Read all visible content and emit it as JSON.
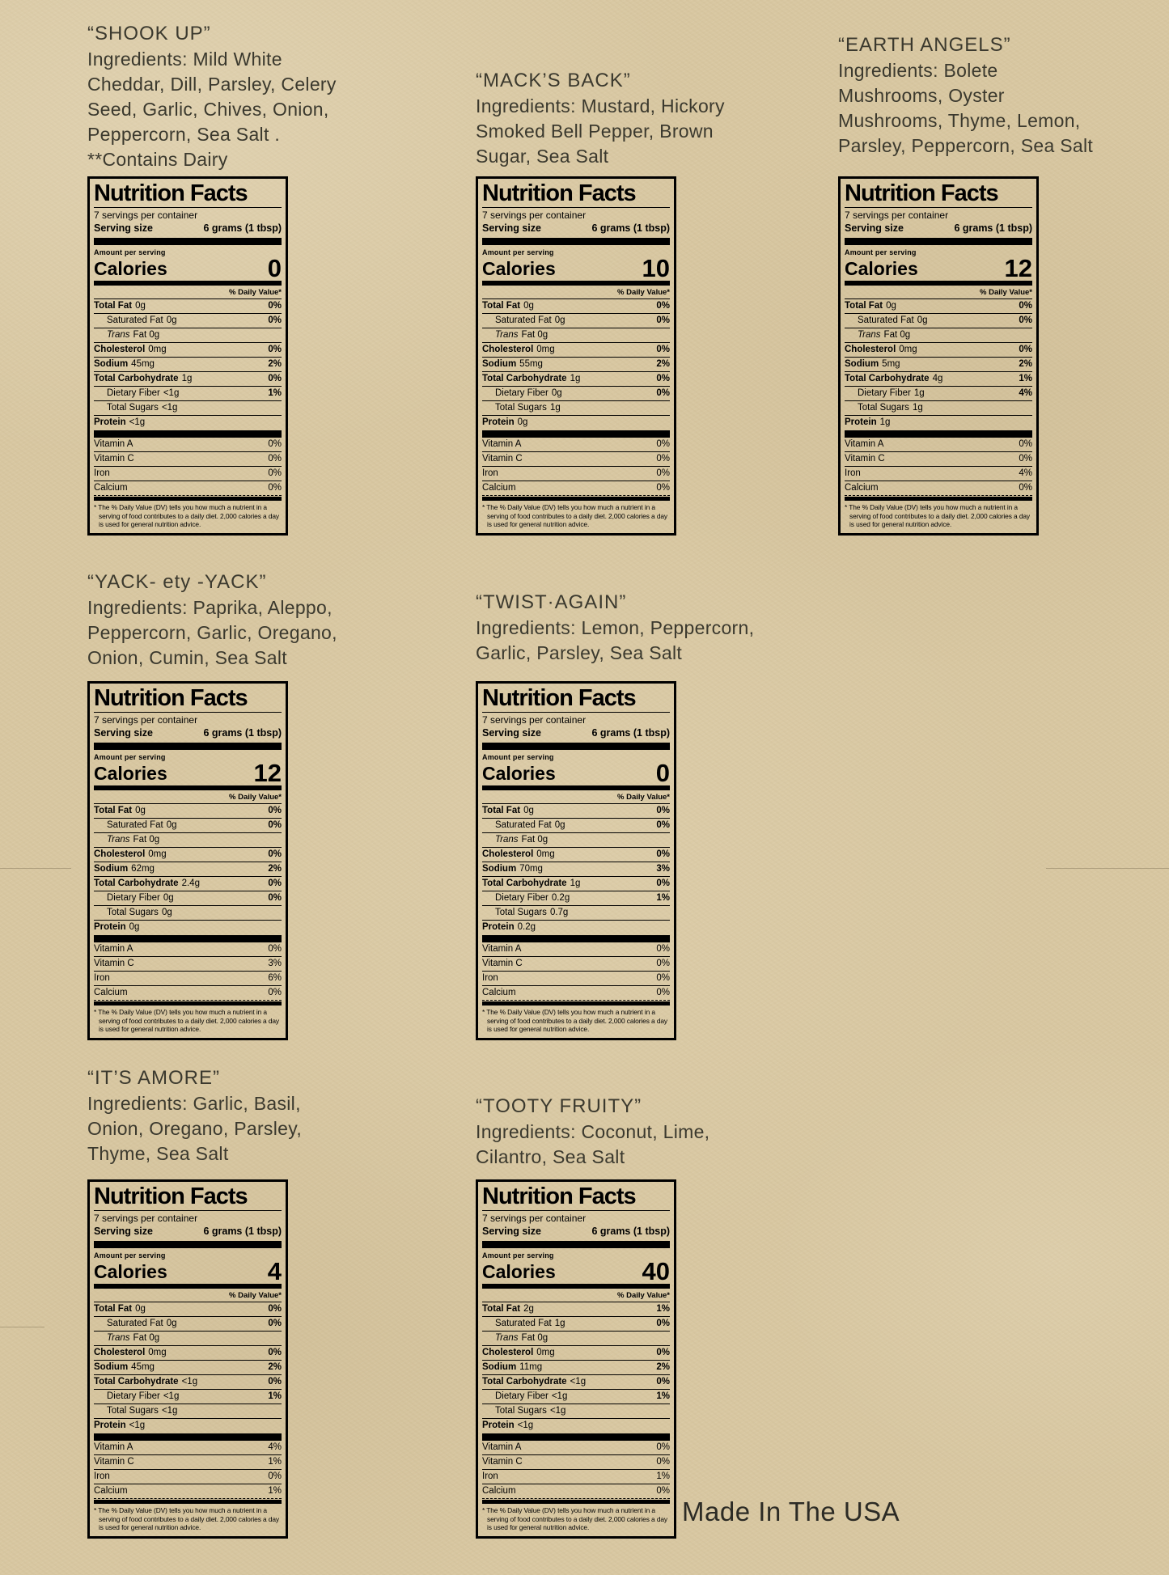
{
  "page": {
    "background_color": "#d8c7a1",
    "made_in_label": "Made In The USA"
  },
  "label_template": {
    "title": "Nutrition Facts",
    "servings_per_container": "7 servings per container",
    "serving_size_label": "Serving size",
    "serving_size_value": "6 grams (1 tbsp)",
    "amount_per_serving": "Amount per serving",
    "calories_label": "Calories",
    "daily_value_header": "% Daily Value*",
    "footnote": "* The % Daily Value (DV) tells you how much a nutrient in a serving of food contributes to a daily diet. 2,000 calories a day is used for general nutrition advice."
  },
  "products": [
    {
      "name": "“SHOOK UP”",
      "ingredient_lines": [
        "Ingredients: Mild White",
        "Cheddar, Dill, Parsley, Celery",
        "Seed, Garlic, Chives, Onion,",
        "Peppercorn, Sea Salt .",
        "**Contains Dairy"
      ],
      "calories": "0",
      "nutrient_rows": [
        {
          "name": "Total Fat",
          "amount": "0g",
          "pct": "0%",
          "style": "main"
        },
        {
          "name": "Saturated Fat",
          "amount": "0g",
          "pct": "0%",
          "style": "sub"
        },
        {
          "name": "Trans",
          "amount": "Fat 0g",
          "pct": "",
          "style": "subitalic"
        },
        {
          "name": "Cholesterol",
          "amount": "0mg",
          "pct": "0%",
          "style": "main"
        },
        {
          "name": "Sodium",
          "amount": "45mg",
          "pct": "2%",
          "style": "main"
        },
        {
          "name": "Total Carbohydrate",
          "amount": "1g",
          "pct": "0%",
          "style": "main"
        },
        {
          "name": "Dietary Fiber",
          "amount": "<1g",
          "pct": "1%",
          "style": "sub"
        },
        {
          "name": "Total Sugars",
          "amount": "<1g",
          "pct": "",
          "style": "sub"
        },
        {
          "name": "Protein",
          "amount": "<1g",
          "pct": "",
          "style": "main"
        }
      ],
      "vitamin_rows": [
        {
          "name": "Vitamin A",
          "pct": "0%"
        },
        {
          "name": "Vitamin C",
          "pct": "0%"
        },
        {
          "name": "Iron",
          "pct": "0%"
        },
        {
          "name": "Calcium",
          "pct": "0%"
        }
      ]
    },
    {
      "name": "“MACK’S BACK”",
      "ingredient_lines": [
        "Ingredients: Mustard, Hickory",
        "Smoked Bell Pepper, Brown",
        "Sugar, Sea Salt"
      ],
      "calories": "10",
      "nutrient_rows": [
        {
          "name": "Total Fat",
          "amount": "0g",
          "pct": "0%",
          "style": "main"
        },
        {
          "name": "Saturated Fat",
          "amount": "0g",
          "pct": "0%",
          "style": "sub"
        },
        {
          "name": "Trans",
          "amount": "Fat 0g",
          "pct": "",
          "style": "subitalic"
        },
        {
          "name": "Cholesterol",
          "amount": "0mg",
          "pct": "0%",
          "style": "main"
        },
        {
          "name": "Sodium",
          "amount": "55mg",
          "pct": "2%",
          "style": "main"
        },
        {
          "name": "Total Carbohydrate",
          "amount": "1g",
          "pct": "0%",
          "style": "main"
        },
        {
          "name": "Dietary Fiber",
          "amount": "0g",
          "pct": "0%",
          "style": "sub"
        },
        {
          "name": "Total Sugars",
          "amount": "1g",
          "pct": "",
          "style": "sub"
        },
        {
          "name": "Protein",
          "amount": "0g",
          "pct": "",
          "style": "main"
        }
      ],
      "vitamin_rows": [
        {
          "name": "Vitamin A",
          "pct": "0%"
        },
        {
          "name": "Vitamin C",
          "pct": "0%"
        },
        {
          "name": "Iron",
          "pct": "0%"
        },
        {
          "name": "Calcium",
          "pct": "0%"
        }
      ]
    },
    {
      "name": "“EARTH ANGELS”",
      "ingredient_lines": [
        "Ingredients: Bolete",
        "Mushrooms, Oyster",
        "Mushrooms, Thyme, Lemon,",
        "Parsley, Peppercorn, Sea Salt"
      ],
      "calories": "12",
      "nutrient_rows": [
        {
          "name": "Total Fat",
          "amount": "0g",
          "pct": "0%",
          "style": "main"
        },
        {
          "name": "Saturated Fat",
          "amount": "0g",
          "pct": "0%",
          "style": "sub"
        },
        {
          "name": "Trans",
          "amount": "Fat 0g",
          "pct": "",
          "style": "subitalic"
        },
        {
          "name": "Cholesterol",
          "amount": "0mg",
          "pct": "0%",
          "style": "main"
        },
        {
          "name": "Sodium",
          "amount": "5mg",
          "pct": "2%",
          "style": "main"
        },
        {
          "name": "Total Carbohydrate",
          "amount": "4g",
          "pct": "1%",
          "style": "main"
        },
        {
          "name": "Dietary Fiber",
          "amount": "1g",
          "pct": "4%",
          "style": "sub"
        },
        {
          "name": "Total Sugars",
          "amount": "1g",
          "pct": "",
          "style": "sub"
        },
        {
          "name": "Protein",
          "amount": "1g",
          "pct": "",
          "style": "main"
        }
      ],
      "vitamin_rows": [
        {
          "name": "Vitamin A",
          "pct": "0%"
        },
        {
          "name": "Vitamin C",
          "pct": "0%"
        },
        {
          "name": "Iron",
          "pct": "4%"
        },
        {
          "name": "Calcium",
          "pct": "0%"
        }
      ]
    },
    {
      "name": "“YACK- ety -YACK”",
      "ingredient_lines": [
        "Ingredients:  Paprika, Aleppo,",
        "Peppercorn, Garlic, Oregano,",
        "Onion, Cumin, Sea Salt"
      ],
      "calories": "12",
      "nutrient_rows": [
        {
          "name": "Total Fat",
          "amount": "0g",
          "pct": "0%",
          "style": "main"
        },
        {
          "name": "Saturated Fat",
          "amount": "0g",
          "pct": "0%",
          "style": "sub"
        },
        {
          "name": "Trans",
          "amount": "Fat 0g",
          "pct": "",
          "style": "subitalic"
        },
        {
          "name": "Cholesterol",
          "amount": "0mg",
          "pct": "0%",
          "style": "main"
        },
        {
          "name": "Sodium",
          "amount": "62mg",
          "pct": "2%",
          "style": "main"
        },
        {
          "name": "Total Carbohydrate",
          "amount": "2.4g",
          "pct": "0%",
          "style": "main"
        },
        {
          "name": "Dietary Fiber",
          "amount": "0g",
          "pct": "0%",
          "style": "sub"
        },
        {
          "name": "Total Sugars",
          "amount": "0g",
          "pct": "",
          "style": "sub"
        },
        {
          "name": "Protein",
          "amount": "0g",
          "pct": "",
          "style": "main"
        }
      ],
      "vitamin_rows": [
        {
          "name": "Vitamin A",
          "pct": "0%"
        },
        {
          "name": "Vitamin C",
          "pct": "3%"
        },
        {
          "name": "Iron",
          "pct": "6%"
        },
        {
          "name": "Calcium",
          "pct": "0%"
        }
      ]
    },
    {
      "name": "“TWIST·AGAIN”",
      "ingredient_lines": [
        "Ingredients: Lemon, Peppercorn,",
        "Garlic, Parsley, Sea Salt"
      ],
      "calories": "0",
      "nutrient_rows": [
        {
          "name": "Total Fat",
          "amount": "0g",
          "pct": "0%",
          "style": "main"
        },
        {
          "name": "Saturated Fat",
          "amount": "0g",
          "pct": "0%",
          "style": "sub"
        },
        {
          "name": "Trans",
          "amount": "Fat 0g",
          "pct": "",
          "style": "subitalic"
        },
        {
          "name": "Cholesterol",
          "amount": "0mg",
          "pct": "0%",
          "style": "main"
        },
        {
          "name": "Sodium",
          "amount": "70mg",
          "pct": "3%",
          "style": "main"
        },
        {
          "name": "Total Carbohydrate",
          "amount": "1g",
          "pct": "0%",
          "style": "main"
        },
        {
          "name": "Dietary Fiber",
          "amount": "0.2g",
          "pct": "1%",
          "style": "sub"
        },
        {
          "name": "Total Sugars",
          "amount": "0.7g",
          "pct": "",
          "style": "sub"
        },
        {
          "name": "Protein",
          "amount": "0.2g",
          "pct": "",
          "style": "main"
        }
      ],
      "vitamin_rows": [
        {
          "name": "Vitamin A",
          "pct": "0%"
        },
        {
          "name": "Vitamin C",
          "pct": "0%"
        },
        {
          "name": "Iron",
          "pct": "0%"
        },
        {
          "name": "Calcium",
          "pct": "0%"
        }
      ]
    },
    {
      "name": "“IT’S AMORE”",
      "ingredient_lines": [
        "Ingredients: Garlic, Basil,",
        "Onion, Oregano, Parsley,",
        "Thyme, Sea Salt"
      ],
      "calories": "4",
      "nutrient_rows": [
        {
          "name": "Total Fat",
          "amount": "0g",
          "pct": "0%",
          "style": "main"
        },
        {
          "name": "Saturated Fat",
          "amount": "0g",
          "pct": "0%",
          "style": "sub"
        },
        {
          "name": "Trans",
          "amount": "Fat 0g",
          "pct": "",
          "style": "subitalic"
        },
        {
          "name": "Cholesterol",
          "amount": "0mg",
          "pct": "0%",
          "style": "main"
        },
        {
          "name": "Sodium",
          "amount": "45mg",
          "pct": "2%",
          "style": "main"
        },
        {
          "name": "Total Carbohydrate",
          "amount": "<1g",
          "pct": "0%",
          "style": "main"
        },
        {
          "name": "Dietary Fiber",
          "amount": "<1g",
          "pct": "1%",
          "style": "sub"
        },
        {
          "name": "Total Sugars",
          "amount": "<1g",
          "pct": "",
          "style": "sub"
        },
        {
          "name": "Protein",
          "amount": "<1g",
          "pct": "",
          "style": "main"
        }
      ],
      "vitamin_rows": [
        {
          "name": "Vitamin A",
          "pct": "4%"
        },
        {
          "name": "Vitamin C",
          "pct": "1%"
        },
        {
          "name": "Iron",
          "pct": "0%"
        },
        {
          "name": "Calcium",
          "pct": "1%"
        }
      ]
    },
    {
      "name": "“TOOTY FRUITY”",
      "ingredient_lines": [
        "Ingredients: Coconut, Lime,",
        "Cilantro, Sea Salt"
      ],
      "calories": "40",
      "nutrient_rows": [
        {
          "name": "Total Fat",
          "amount": "2g",
          "pct": "1%",
          "style": "main"
        },
        {
          "name": "Saturated Fat",
          "amount": "1g",
          "pct": "0%",
          "style": "sub"
        },
        {
          "name": "Trans",
          "amount": "Fat 0g",
          "pct": "",
          "style": "subitalic"
        },
        {
          "name": "Cholesterol",
          "amount": "0mg",
          "pct": "0%",
          "style": "main"
        },
        {
          "name": "Sodium",
          "amount": "11mg",
          "pct": "2%",
          "style": "main"
        },
        {
          "name": "Total Carbohydrate",
          "amount": "<1g",
          "pct": "0%",
          "style": "main"
        },
        {
          "name": "Dietary Fiber",
          "amount": "<1g",
          "pct": "1%",
          "style": "sub"
        },
        {
          "name": "Total Sugars",
          "amount": "<1g",
          "pct": "",
          "style": "sub"
        },
        {
          "name": "Protein",
          "amount": "<1g",
          "pct": "",
          "style": "main"
        }
      ],
      "vitamin_rows": [
        {
          "name": "Vitamin A",
          "pct": "0%"
        },
        {
          "name": "Vitamin C",
          "pct": "0%"
        },
        {
          "name": "Iron",
          "pct": "1%"
        },
        {
          "name": "Calcium",
          "pct": "0%"
        }
      ]
    }
  ]
}
